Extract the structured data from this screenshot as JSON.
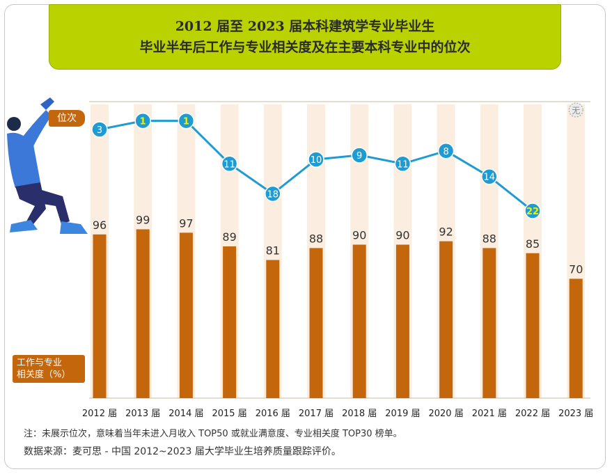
{
  "title": {
    "line1": "2012 届至 2023 届本科建筑学专业毕业生",
    "line2": "毕业半年后工作与专业相关度及在主要本科专业中的位次"
  },
  "legend": {
    "rank_label": "位次",
    "relevance_label_line1": "工作与专业",
    "relevance_label_line2": "相关度（%）"
  },
  "footnote": "注：未展示位次，意味着当年未进入月收入 TOP50 或就业满意度、专业相关度 TOP30 榜单。",
  "source": "数据来源：麦可思 - 中国 2012~2023 届大学毕业生培养质量跟踪评价。",
  "chart_data": {
    "type": "bar",
    "categories": [
      "2012 届",
      "2013 届",
      "2014 届",
      "2015 届",
      "2016 届",
      "2017 届",
      "2018 届",
      "2019 届",
      "2020 届",
      "2021 届",
      "2022 届",
      "2023 届"
    ],
    "series": [
      {
        "name": "工作与专业相关度（%）",
        "type": "bar",
        "values": [
          96,
          99,
          97,
          89,
          81,
          88,
          90,
          90,
          92,
          88,
          85,
          70
        ]
      },
      {
        "name": "位次",
        "type": "line",
        "values": [
          3,
          1,
          1,
          11,
          18,
          10,
          9,
          11,
          8,
          14,
          22,
          null
        ]
      }
    ],
    "rank_missing_label": "无",
    "colors": {
      "bar": "#c4660c",
      "line": "#1f9bd4",
      "column_bg": "#fbeee0",
      "highlight_text": "#f0f000"
    }
  }
}
